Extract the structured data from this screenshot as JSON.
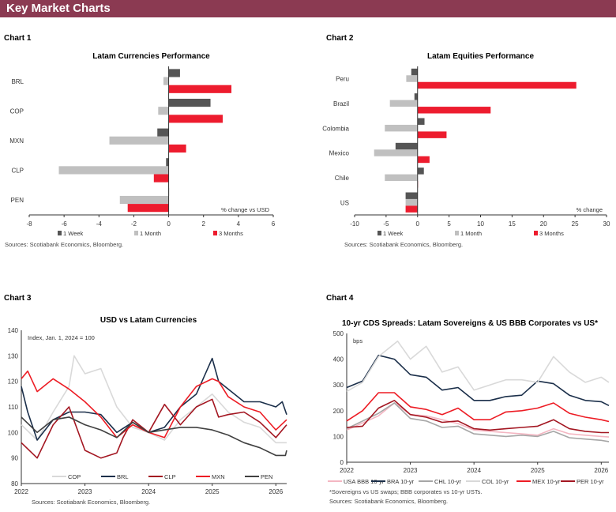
{
  "header": {
    "title": "Key Market Charts"
  },
  "colors": {
    "header": "#8b3a52"
  },
  "chart_data": [
    {
      "label": "Chart 1",
      "type": "bar",
      "orientation": "horizontal",
      "title": "Latam Currencies Performance",
      "unit_note": "% change vs USD",
      "categories": [
        "BRL",
        "COP",
        "MXN",
        "CLP",
        "PEN"
      ],
      "series": [
        {
          "name": "1 Week",
          "color": "#555555",
          "values": [
            0.65,
            2.4,
            -0.65,
            -0.15,
            0
          ]
        },
        {
          "name": "1 Month",
          "color": "#c0c0c0",
          "values": [
            -0.3,
            -0.6,
            -3.4,
            -6.3,
            -2.8
          ]
        },
        {
          "name": "3 Months",
          "color": "#ed1c2e",
          "values": [
            3.6,
            3.1,
            1.0,
            -0.85,
            -2.35
          ]
        }
      ],
      "xlim": [
        -8,
        6
      ],
      "xticks": [
        "-8",
        "-6",
        "-4",
        "-2",
        "0",
        "2",
        "4",
        "6"
      ],
      "legend": "bottom",
      "source": "Sources: Scotiabank Economics, Bloomberg."
    },
    {
      "label": "Chart 2",
      "type": "bar",
      "orientation": "horizontal",
      "title": "Latam Equities Performance",
      "unit_note": "% change",
      "categories": [
        "Peru",
        "Brazil",
        "Colombia",
        "Mexico",
        "Chile",
        "US"
      ],
      "series": [
        {
          "name": "1 Week",
          "color": "#555555",
          "values": [
            -1.0,
            -0.5,
            1.1,
            -3.5,
            1.0,
            -1.9
          ]
        },
        {
          "name": "1 Month",
          "color": "#c0c0c0",
          "values": [
            -1.8,
            -4.4,
            -5.2,
            -6.9,
            -5.2,
            -1.9
          ]
        },
        {
          "name": "3 Months",
          "color": "#ed1c2e",
          "values": [
            25.2,
            11.6,
            4.6,
            1.9,
            0,
            -1.9
          ]
        }
      ],
      "xlim": [
        -10,
        30
      ],
      "xticks": [
        "-10",
        "-5",
        "0",
        "5",
        "10",
        "15",
        "20",
        "25",
        "30"
      ],
      "legend": "bottom",
      "source": "Sources: Scotiabank Economics, Bloomberg."
    },
    {
      "label": "Chart 3",
      "type": "line",
      "title": "USD vs Latam Currencies",
      "unit_note": "Index, Jan. 1, 2024 = 100",
      "xlim": [
        2022,
        2026.17
      ],
      "ylim": [
        80,
        140
      ],
      "xticks": [
        "2022",
        "2023",
        "2024",
        "2025",
        "2026"
      ],
      "yticks": [
        "80",
        "90",
        "100",
        "110",
        "120",
        "130",
        "140"
      ],
      "legend": "bottom-inside",
      "series": [
        {
          "name": "COP",
          "color": "#d9d9d9",
          "points": [
            [
              2022,
              103
            ],
            [
              2022.25,
              97
            ],
            [
              2022.5,
              108
            ],
            [
              2022.75,
              118
            ],
            [
              2022.83,
              130
            ],
            [
              2023,
              123
            ],
            [
              2023.25,
              125
            ],
            [
              2023.5,
              110
            ],
            [
              2023.75,
              102
            ],
            [
              2024,
              100
            ],
            [
              2024.25,
              97
            ],
            [
              2024.5,
              105
            ],
            [
              2024.75,
              110
            ],
            [
              2025,
              115
            ],
            [
              2025.25,
              108
            ],
            [
              2025.5,
              104
            ],
            [
              2025.75,
              102
            ],
            [
              2026,
              96
            ],
            [
              2026.17,
              96
            ]
          ]
        },
        {
          "name": "BRL",
          "color": "#1b2f4a",
          "points": [
            [
              2022,
              118
            ],
            [
              2022.1,
              108
            ],
            [
              2022.25,
              97
            ],
            [
              2022.5,
              105
            ],
            [
              2022.75,
              108
            ],
            [
              2023,
              108
            ],
            [
              2023.25,
              107
            ],
            [
              2023.5,
              100
            ],
            [
              2023.75,
              104
            ],
            [
              2024,
              100
            ],
            [
              2024.25,
              102
            ],
            [
              2024.5,
              110
            ],
            [
              2024.75,
              115
            ],
            [
              2025,
              129
            ],
            [
              2025.1,
              120
            ],
            [
              2025.25,
              117
            ],
            [
              2025.5,
              112
            ],
            [
              2025.75,
              112
            ],
            [
              2026,
              110
            ],
            [
              2026.1,
              112
            ],
            [
              2026.17,
              107
            ]
          ]
        },
        {
          "name": "CLP",
          "color": "#a31621",
          "points": [
            [
              2022,
              96
            ],
            [
              2022.25,
              90
            ],
            [
              2022.5,
              103
            ],
            [
              2022.75,
              110
            ],
            [
              2023,
              93
            ],
            [
              2023.25,
              90
            ],
            [
              2023.5,
              92
            ],
            [
              2023.6,
              98
            ],
            [
              2023.75,
              105
            ],
            [
              2024,
              100
            ],
            [
              2024.25,
              111
            ],
            [
              2024.5,
              103
            ],
            [
              2024.75,
              110
            ],
            [
              2025,
              113
            ],
            [
              2025.1,
              106
            ],
            [
              2025.25,
              107
            ],
            [
              2025.5,
              108
            ],
            [
              2025.75,
              104
            ],
            [
              2026,
              98
            ],
            [
              2026.17,
              103
            ]
          ]
        },
        {
          "name": "MXN",
          "color": "#ed1c24",
          "points": [
            [
              2022,
              121
            ],
            [
              2022.1,
              124
            ],
            [
              2022.25,
              116
            ],
            [
              2022.5,
              121
            ],
            [
              2022.75,
              117
            ],
            [
              2023,
              112
            ],
            [
              2023.25,
              106
            ],
            [
              2023.5,
              98
            ],
            [
              2023.75,
              103
            ],
            [
              2024,
              100
            ],
            [
              2024.25,
              98
            ],
            [
              2024.5,
              110
            ],
            [
              2024.75,
              118
            ],
            [
              2025,
              121
            ],
            [
              2025.1,
              120
            ],
            [
              2025.25,
              114
            ],
            [
              2025.5,
              110
            ],
            [
              2025.75,
              108
            ],
            [
              2026,
              101
            ],
            [
              2026.17,
              105
            ]
          ]
        },
        {
          "name": "PEN",
          "color": "#404040",
          "points": [
            [
              2022,
              106
            ],
            [
              2022.25,
              100
            ],
            [
              2022.5,
              105
            ],
            [
              2022.75,
              106
            ],
            [
              2023,
              103
            ],
            [
              2023.25,
              101
            ],
            [
              2023.5,
              98
            ],
            [
              2023.75,
              104
            ],
            [
              2024,
              100
            ],
            [
              2024.25,
              101
            ],
            [
              2024.5,
              102
            ],
            [
              2024.75,
              102
            ],
            [
              2025,
              101
            ],
            [
              2025.25,
              99
            ],
            [
              2025.5,
              96
            ],
            [
              2025.75,
              94
            ],
            [
              2026,
              91
            ],
            [
              2026.15,
              91
            ],
            [
              2026.17,
              93
            ]
          ]
        }
      ],
      "source": "Sources: Scotiabank Economics, Bloomberg."
    },
    {
      "label": "Chart 4",
      "type": "line",
      "title": "10-yr CDS Spreads: Latam Sovereigns & US BBB Corporates vs US*",
      "unit_note": "bps",
      "xlim": [
        2022,
        2026.12
      ],
      "ylim": [
        0,
        500
      ],
      "xticks": [
        "2022",
        "2023",
        "2024",
        "2025",
        "2026"
      ],
      "yticks": [
        "0",
        "100",
        "200",
        "300",
        "400",
        "500"
      ],
      "legend": "bottom",
      "series": [
        {
          "name": "USA BBB 10-yr",
          "color": "#f4b6c2",
          "points": [
            [
              2022,
              125
            ],
            [
              2022.5,
              180
            ],
            [
              2022.75,
              230
            ],
            [
              2023,
              185
            ],
            [
              2023.25,
              180
            ],
            [
              2023.5,
              165
            ],
            [
              2023.75,
              150
            ],
            [
              2024,
              125
            ],
            [
              2024.5,
              115
            ],
            [
              2024.75,
              110
            ],
            [
              2025,
              105
            ],
            [
              2025.25,
              130
            ],
            [
              2025.5,
              110
            ],
            [
              2025.75,
              105
            ],
            [
              2026,
              100
            ],
            [
              2026.12,
              98
            ]
          ]
        },
        {
          "name": "BRA 10-yr",
          "color": "#1b2f4a",
          "points": [
            [
              2022,
              290
            ],
            [
              2022.25,
              315
            ],
            [
              2022.5,
              415
            ],
            [
              2022.75,
              400
            ],
            [
              2023,
              340
            ],
            [
              2023.25,
              330
            ],
            [
              2023.5,
              280
            ],
            [
              2023.75,
              290
            ],
            [
              2024,
              240
            ],
            [
              2024.25,
              240
            ],
            [
              2024.5,
              255
            ],
            [
              2024.75,
              260
            ],
            [
              2025,
              315
            ],
            [
              2025.25,
              305
            ],
            [
              2025.5,
              260
            ],
            [
              2025.75,
              240
            ],
            [
              2026,
              235
            ],
            [
              2026.12,
              220
            ]
          ]
        },
        {
          "name": "CHL 10-yr",
          "color": "#a6a6a6",
          "points": [
            [
              2022,
              130
            ],
            [
              2022.5,
              190
            ],
            [
              2022.75,
              230
            ],
            [
              2023,
              170
            ],
            [
              2023.25,
              160
            ],
            [
              2023.5,
              135
            ],
            [
              2023.75,
              140
            ],
            [
              2024,
              110
            ],
            [
              2024.5,
              100
            ],
            [
              2024.75,
              105
            ],
            [
              2025,
              100
            ],
            [
              2025.25,
              120
            ],
            [
              2025.5,
              95
            ],
            [
              2025.75,
              90
            ],
            [
              2026,
              85
            ],
            [
              2026.12,
              80
            ]
          ]
        },
        {
          "name": "COL 10-yr",
          "color": "#d9d9d9",
          "points": [
            [
              2022,
              275
            ],
            [
              2022.25,
              310
            ],
            [
              2022.5,
              410
            ],
            [
              2022.8,
              470
            ],
            [
              2023,
              400
            ],
            [
              2023.25,
              450
            ],
            [
              2023.5,
              350
            ],
            [
              2023.75,
              370
            ],
            [
              2024,
              280
            ],
            [
              2024.25,
              300
            ],
            [
              2024.5,
              320
            ],
            [
              2024.75,
              320
            ],
            [
              2025,
              310
            ],
            [
              2025.25,
              410
            ],
            [
              2025.5,
              350
            ],
            [
              2025.75,
              310
            ],
            [
              2026,
              330
            ],
            [
              2026.12,
              310
            ]
          ]
        },
        {
          "name": "MEX 10-yr",
          "color": "#ed1c24",
          "points": [
            [
              2022,
              160
            ],
            [
              2022.25,
              200
            ],
            [
              2022.5,
              270
            ],
            [
              2022.75,
              270
            ],
            [
              2023,
              215
            ],
            [
              2023.25,
              205
            ],
            [
              2023.5,
              185
            ],
            [
              2023.75,
              210
            ],
            [
              2024,
              165
            ],
            [
              2024.25,
              165
            ],
            [
              2024.5,
              195
            ],
            [
              2024.75,
              200
            ],
            [
              2025,
              210
            ],
            [
              2025.25,
              230
            ],
            [
              2025.5,
              190
            ],
            [
              2025.75,
              175
            ],
            [
              2026,
              165
            ],
            [
              2026.12,
              158
            ]
          ]
        },
        {
          "name": "PER 10-yr",
          "color": "#a31621",
          "points": [
            [
              2022,
              135
            ],
            [
              2022.25,
              140
            ],
            [
              2022.5,
              210
            ],
            [
              2022.75,
              240
            ],
            [
              2023,
              185
            ],
            [
              2023.25,
              175
            ],
            [
              2023.5,
              155
            ],
            [
              2023.75,
              160
            ],
            [
              2024,
              130
            ],
            [
              2024.25,
              125
            ],
            [
              2024.5,
              130
            ],
            [
              2024.75,
              135
            ],
            [
              2025,
              140
            ],
            [
              2025.25,
              165
            ],
            [
              2025.5,
              130
            ],
            [
              2025.75,
              120
            ],
            [
              2026,
              115
            ],
            [
              2026.12,
              115
            ]
          ]
        }
      ],
      "footnote": "*Sovereigns vs US swaps; BBB corporates vs 10-yr USTs.",
      "source": "Sources: Scotiabank Economics, Bloomberg."
    }
  ]
}
